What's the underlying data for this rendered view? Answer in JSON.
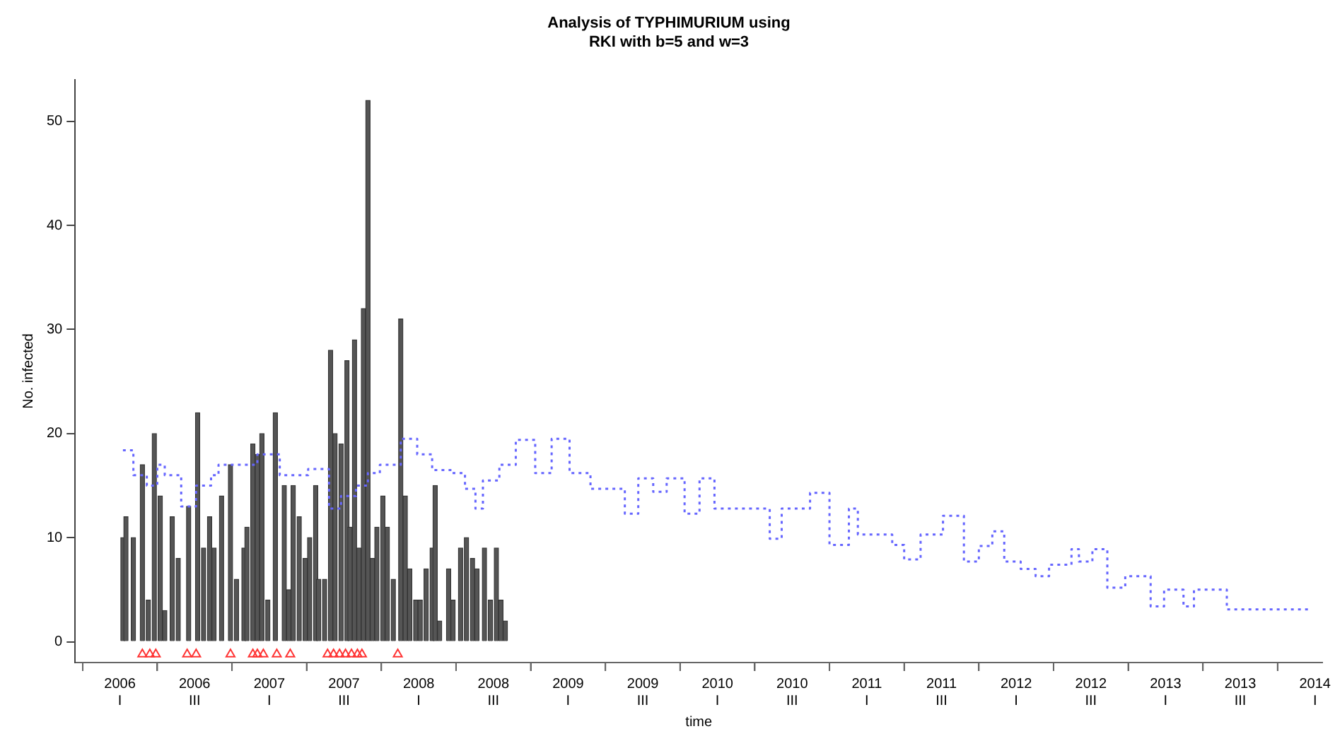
{
  "chart_data": {
    "type": "bar",
    "title": "Analysis of TYPHIMURIUM using\nRKI with b=5 and w=3",
    "xlabel": "time",
    "ylabel": "No. infected",
    "xlim": [
      2005.7,
      2014.05
    ],
    "xticks": [
      {
        "value": 2006,
        "label": "2006\nI"
      },
      {
        "value": 2006.25,
        "label": null
      },
      {
        "value": 2006.5,
        "label": "2006\nIII"
      },
      {
        "value": 2006.75,
        "label": null
      },
      {
        "value": 2007,
        "label": "2007\nI"
      },
      {
        "value": 2007.25,
        "label": null
      },
      {
        "value": 2007.5,
        "label": "2007\nIII"
      },
      {
        "value": 2007.75,
        "label": null
      },
      {
        "value": 2008,
        "label": "2008\nI"
      },
      {
        "value": 2008.25,
        "label": null
      },
      {
        "value": 2008.5,
        "label": "2008\nIII"
      },
      {
        "value": 2008.75,
        "label": null
      },
      {
        "value": 2009,
        "label": "2009\nI"
      },
      {
        "value": 2009.25,
        "label": null
      },
      {
        "value": 2009.5,
        "label": "2009\nIII"
      },
      {
        "value": 2009.75,
        "label": null
      },
      {
        "value": 2010,
        "label": "2010\nI"
      },
      {
        "value": 2010.25,
        "label": null
      },
      {
        "value": 2010.5,
        "label": "2010\nIII"
      },
      {
        "value": 2010.75,
        "label": null
      },
      {
        "value": 2011,
        "label": "2011\nI"
      },
      {
        "value": 2011.25,
        "label": null
      },
      {
        "value": 2011.5,
        "label": "2011\nIII"
      },
      {
        "value": 2011.75,
        "label": null
      },
      {
        "value": 2012,
        "label": "2012\nI"
      },
      {
        "value": 2012.25,
        "label": null
      },
      {
        "value": 2012.5,
        "label": "2012\nIII"
      },
      {
        "value": 2012.75,
        "label": null
      },
      {
        "value": 2013,
        "label": "2013\nI"
      },
      {
        "value": 2013.25,
        "label": null
      },
      {
        "value": 2013.5,
        "label": "2013\nIII"
      },
      {
        "value": 2013.75,
        "label": null
      },
      {
        "value": 2014,
        "label": "2014\nI"
      }
    ],
    "ylim": [
      -2,
      54
    ],
    "yticks": [
      0,
      10,
      20,
      30,
      40,
      50
    ],
    "grid": false,
    "legend": false,
    "series": [
      {
        "color": "#555555",
        "x": [
          2006.02,
          2006.04,
          2006.09,
          2006.15,
          2006.19,
          2006.23,
          2006.27,
          2006.3,
          2006.35,
          2006.39,
          2006.46,
          2006.52,
          2006.56,
          2006.6,
          2006.63,
          2006.68,
          2006.74,
          2006.78,
          2006.83,
          2006.85,
          2006.89,
          2006.92,
          2006.95,
          2006.99,
          2007.04,
          2007.1,
          2007.13,
          2007.16,
          2007.2,
          2007.24,
          2007.27,
          2007.31,
          2007.33,
          2007.37,
          2007.41,
          2007.44,
          2007.48,
          2007.52,
          2007.54,
          2007.57,
          2007.6,
          2007.63,
          2007.66,
          2007.69,
          2007.72,
          2007.76,
          2007.79,
          2007.83,
          2007.88,
          2007.91,
          2007.94,
          2007.98,
          2008.01,
          2008.05,
          2008.09,
          2008.11,
          2008.14,
          2008.2,
          2008.23,
          2008.28,
          2008.32,
          2008.36,
          2008.39,
          2008.44,
          2008.48,
          2008.52,
          2008.55,
          2008.58
        ],
        "values": [
          10,
          12,
          10,
          17,
          4,
          20,
          14,
          3,
          12,
          8,
          13,
          22,
          9,
          12,
          9,
          14,
          17,
          6,
          9,
          11,
          19,
          18,
          20,
          4,
          22,
          15,
          5,
          15,
          12,
          8,
          10,
          15,
          6,
          6,
          28,
          20,
          19,
          27,
          11,
          29,
          9,
          32,
          52,
          8,
          11,
          14,
          11,
          6,
          31,
          14,
          7,
          4,
          4,
          7,
          9,
          15,
          2,
          7,
          4,
          9,
          10,
          8,
          7,
          9,
          4,
          9,
          4,
          2
        ]
      },
      {
        "type": "step",
        "color": "#6666ff",
        "line_style": "dotted",
        "marker": "none",
        "x": [
          2006.02,
          2006.09,
          2006.18,
          2006.25,
          2006.3,
          2006.41,
          2006.47,
          2006.51,
          2006.61,
          2006.66,
          2006.87,
          2006.92,
          2007.07,
          2007.16,
          2007.26,
          2007.4,
          2007.48,
          2007.58,
          2007.66,
          2007.74,
          2007.86,
          2007.88,
          2007.99,
          2008.09,
          2008.22,
          2008.31,
          2008.38,
          2008.43,
          2008.54,
          2008.65,
          2008.78,
          2008.89,
          2009.01,
          2009.15,
          2009.26,
          2009.38,
          2009.47,
          2009.57,
          2009.66,
          2009.78,
          2009.88,
          2009.98,
          2010.17,
          2010.35,
          2010.43,
          2010.62,
          2010.75,
          2010.88,
          2010.94,
          2011.17,
          2011.25,
          2011.36,
          2011.51,
          2011.65,
          2011.75,
          2011.84,
          2011.92,
          2012.03,
          2012.13,
          2012.22,
          2012.37,
          2012.42,
          2012.51,
          2012.61,
          2012.73,
          2012.9,
          2012.99,
          2013.12,
          2013.19,
          2013.38,
          2013.41,
          2013.96
        ],
        "values": [
          18.4,
          16,
          15,
          17,
          16,
          13,
          13,
          15,
          16,
          17,
          17,
          18,
          16,
          16,
          16.6,
          12.8,
          14,
          15,
          16.2,
          17,
          17,
          19.5,
          18,
          16.5,
          16.2,
          14.7,
          12.8,
          15.5,
          17,
          19.4,
          16.2,
          19.5,
          16.2,
          14.7,
          14.7,
          12.3,
          15.7,
          14.4,
          15.7,
          12.3,
          15.7,
          12.8,
          12.8,
          9.9,
          12.8,
          14.3,
          9.3,
          12.8,
          10.3,
          9.3,
          7.9,
          10.3,
          12.1,
          7.7,
          9.2,
          10.6,
          7.7,
          7,
          6.3,
          7.4,
          8.9,
          7.7,
          8.9,
          5.2,
          6.3,
          3.4,
          5,
          3.4,
          5,
          5,
          3.1,
          3.1
        ]
      },
      {
        "type": "scatter",
        "color": "#ff3333",
        "marker": "triangle",
        "x": [
          2006.15,
          2006.2,
          2006.24,
          2006.45,
          2006.51,
          2006.74,
          2006.89,
          2006.92,
          2006.96,
          2007.05,
          2007.14,
          2007.39,
          2007.43,
          2007.47,
          2007.51,
          2007.55,
          2007.59,
          2007.62,
          2007.86
        ],
        "values": [
          -1.2,
          -1.2,
          -1.2,
          -1.2,
          -1.2,
          -1.2,
          -1.2,
          -1.2,
          -1.2,
          -1.2,
          -1.2,
          -1.2,
          -1.2,
          -1.2,
          -1.2,
          -1.2,
          -1.2,
          -1.2,
          -1.2
        ]
      }
    ]
  }
}
